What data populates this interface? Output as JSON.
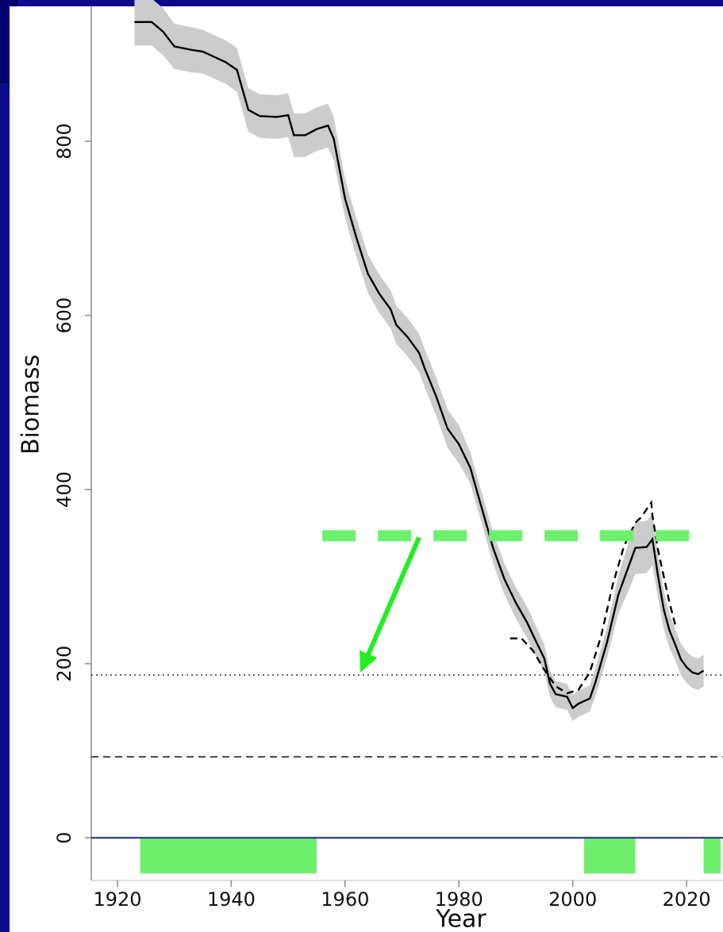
{
  "chart_data": {
    "type": "line",
    "xlabel": "Year",
    "ylabel": "Biomass",
    "xlim": [
      1915.4,
      2026.4
    ],
    "ylim": [
      -49,
      955
    ],
    "xticks": [
      1920,
      1940,
      1960,
      1980,
      2000,
      2020
    ],
    "yticks": [
      0,
      200,
      400,
      600,
      800
    ],
    "series": [
      {
        "color": "#000000",
        "band_color": "#cccccc",
        "style": "solid",
        "x": [
          1923,
          1926,
          1928,
          1930,
          1933,
          1935,
          1937,
          1939,
          1941,
          1943,
          1945,
          1948,
          1950,
          1951,
          1953,
          1955,
          1957,
          1958,
          1960,
          1962,
          1964,
          1966,
          1968,
          1969,
          1971,
          1973,
          1974,
          1976,
          1978,
          1980,
          1982,
          1984,
          1986,
          1988,
          1990,
          1992,
          1993,
          1995,
          1996,
          1997,
          1999,
          2000,
          2001,
          2003,
          2004,
          2006,
          2008,
          2010,
          2011,
          2013,
          2014,
          2015,
          2016,
          2017,
          2018,
          2019,
          2020,
          2021,
          2022,
          2023
        ],
        "values": [
          937,
          937,
          926,
          909,
          905,
          903,
          897,
          891,
          882,
          836,
          829,
          828,
          830,
          807,
          807,
          814,
          818,
          803,
          734,
          689,
          648,
          625,
          607,
          589,
          575,
          557,
          539,
          507,
          470,
          452,
          425,
          379,
          333,
          297,
          270,
          247,
          233,
          206,
          177,
          165,
          162,
          149,
          154,
          160,
          179,
          224,
          279,
          315,
          333,
          334,
          343,
          300,
          262,
          238,
          222,
          205,
          196,
          190,
          188,
          192
        ],
        "uncertainty": [
          27,
          27,
          27,
          26,
          26,
          25,
          25,
          25,
          25,
          25,
          25,
          25,
          25,
          25,
          25,
          25,
          25,
          25,
          22,
          22,
          22,
          22,
          22,
          22,
          22,
          22,
          22,
          22,
          22,
          22,
          18,
          18,
          18,
          18,
          18,
          18,
          18,
          16,
          15,
          15,
          15,
          15,
          15,
          15,
          16,
          18,
          22,
          28,
          30,
          30,
          30,
          25,
          22,
          20,
          18,
          18,
          18,
          18,
          18,
          18
        ]
      },
      {
        "color": "#000000",
        "style": "dashed",
        "x": [
          1989,
          1991,
          1993,
          1995,
          1997,
          1999,
          2001,
          2003,
          2005,
          2007,
          2009,
          2011,
          2012,
          2013.8,
          2014,
          2015,
          2016,
          2017,
          2018
        ],
        "values": [
          229,
          229,
          215,
          193,
          174,
          166,
          170,
          190,
          232,
          290,
          335,
          362,
          368,
          385,
          370,
          330,
          300,
          270,
          245
        ]
      }
    ],
    "reference_lines": [
      {
        "value": 187,
        "color": "#444444",
        "style": "dotted"
      },
      {
        "value": 93,
        "color": "#222222",
        "style": "dashed"
      }
    ],
    "annotations": {
      "color": "#6ef06e",
      "threshold": {
        "value": 347,
        "xrange": [
          1956,
          2022
        ]
      },
      "arrow": {
        "from": [
          1973,
          345
        ],
        "to": [
          1962.7,
          190
        ],
        "color": "#22ee22"
      },
      "periods": [
        [
          1924,
          1955
        ],
        [
          2002,
          2011
        ],
        [
          2023,
          2026
        ]
      ]
    }
  }
}
